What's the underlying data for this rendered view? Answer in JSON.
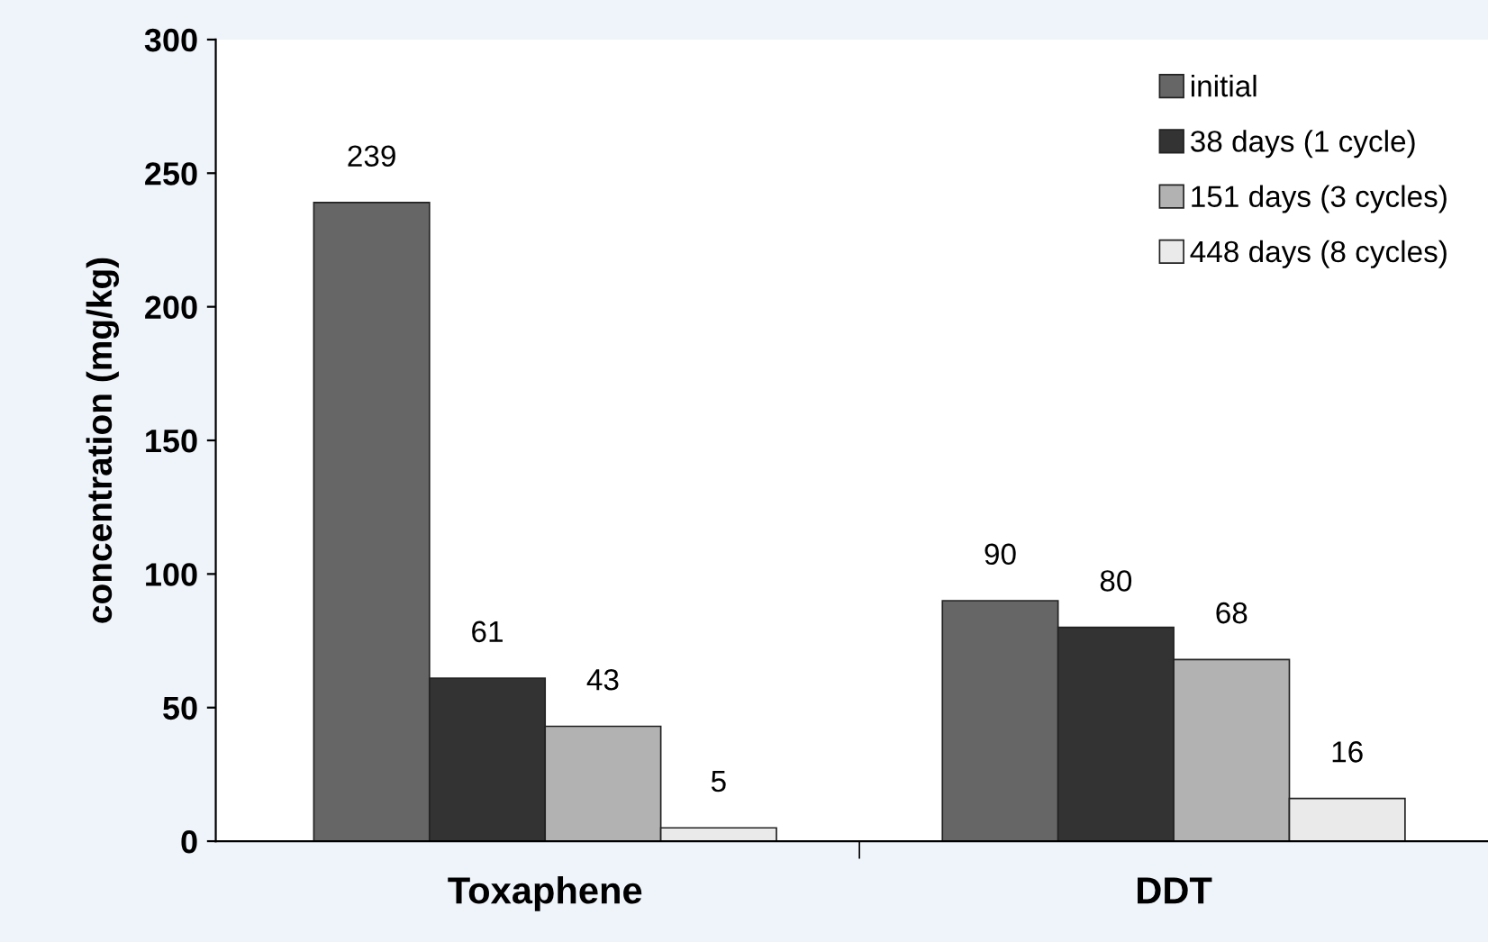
{
  "chart_data": {
    "type": "bar",
    "ylabel": "concentration (mg/kg)",
    "categories": [
      "Toxaphene",
      "DDT"
    ],
    "series": [
      {
        "name": "initial",
        "color": "#666666",
        "values": [
          239,
          90
        ]
      },
      {
        "name": "38 days (1 cycle)",
        "color": "#333333",
        "values": [
          61,
          80
        ]
      },
      {
        "name": "151 days (3 cycles)",
        "color": "#b2b2b2",
        "values": [
          43,
          68
        ]
      },
      {
        "name": "448 days (8 cycles)",
        "color": "#eaeaea",
        "values": [
          5,
          16
        ]
      }
    ],
    "ylim": [
      0,
      300
    ],
    "yticks": [
      0,
      50,
      100,
      150,
      200,
      250,
      300
    ],
    "data_labels": true,
    "legend": "top right",
    "grid": false
  }
}
